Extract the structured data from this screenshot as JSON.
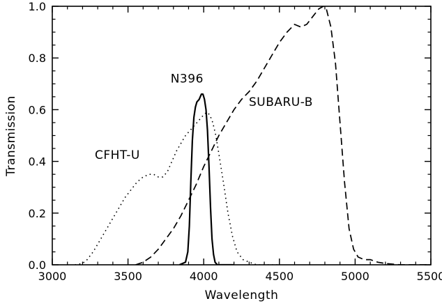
{
  "colors": {
    "stroke": "#000000",
    "background": "#ffffff"
  },
  "chart_data": {
    "type": "line",
    "title": "",
    "xlabel": "Wavelength",
    "ylabel": "Transmission",
    "xlim": [
      3000,
      5500
    ],
    "ylim": [
      0.0,
      1.0
    ],
    "x_ticks": [
      3000,
      3500,
      4000,
      4500,
      5000,
      5500
    ],
    "x_tick_labels": [
      "3000",
      "3500",
      "4000",
      "4500",
      "5000",
      "5500"
    ],
    "x_minor_step": 100,
    "y_ticks": [
      0.0,
      0.2,
      0.4,
      0.6,
      0.8,
      1.0
    ],
    "y_tick_labels": [
      "0.0",
      "0.2",
      "0.4",
      "0.6",
      "0.8",
      "1.0"
    ],
    "y_minor_step": 0.05,
    "grid": false,
    "legend_position": "none",
    "annotations": [
      {
        "text": "CFHT-U",
        "x": 3430,
        "y": 0.41
      },
      {
        "text": "N396",
        "x": 3890,
        "y": 0.705
      },
      {
        "text": "SUBARU-B",
        "x": 4510,
        "y": 0.615
      }
    ],
    "series": [
      {
        "name": "CFHT-U",
        "style": "dotted",
        "line_width": 1.6,
        "points": [
          [
            3150,
            0.0
          ],
          [
            3200,
            0.005
          ],
          [
            3230,
            0.02
          ],
          [
            3270,
            0.05
          ],
          [
            3300,
            0.08
          ],
          [
            3330,
            0.11
          ],
          [
            3360,
            0.14
          ],
          [
            3400,
            0.18
          ],
          [
            3440,
            0.22
          ],
          [
            3480,
            0.26
          ],
          [
            3520,
            0.29
          ],
          [
            3560,
            0.32
          ],
          [
            3600,
            0.34
          ],
          [
            3640,
            0.35
          ],
          [
            3670,
            0.35
          ],
          [
            3700,
            0.34
          ],
          [
            3730,
            0.34
          ],
          [
            3760,
            0.36
          ],
          [
            3790,
            0.4
          ],
          [
            3820,
            0.44
          ],
          [
            3850,
            0.47
          ],
          [
            3880,
            0.5
          ],
          [
            3910,
            0.52
          ],
          [
            3940,
            0.54
          ],
          [
            3970,
            0.56
          ],
          [
            4000,
            0.58
          ],
          [
            4020,
            0.59
          ],
          [
            4040,
            0.58
          ],
          [
            4060,
            0.55
          ],
          [
            4080,
            0.5
          ],
          [
            4100,
            0.43
          ],
          [
            4130,
            0.32
          ],
          [
            4160,
            0.2
          ],
          [
            4190,
            0.11
          ],
          [
            4220,
            0.05
          ],
          [
            4260,
            0.02
          ],
          [
            4300,
            0.01
          ],
          [
            4350,
            0.0
          ],
          [
            4500,
            0.0
          ]
        ]
      },
      {
        "name": "N396",
        "style": "solid",
        "line_width": 2.2,
        "points": [
          [
            3840,
            0.0
          ],
          [
            3880,
            0.01
          ],
          [
            3895,
            0.05
          ],
          [
            3905,
            0.15
          ],
          [
            3915,
            0.32
          ],
          [
            3925,
            0.48
          ],
          [
            3935,
            0.57
          ],
          [
            3945,
            0.61
          ],
          [
            3955,
            0.63
          ],
          [
            3970,
            0.64
          ],
          [
            3985,
            0.66
          ],
          [
            3995,
            0.66
          ],
          [
            4005,
            0.64
          ],
          [
            4015,
            0.6
          ],
          [
            4025,
            0.52
          ],
          [
            4035,
            0.38
          ],
          [
            4045,
            0.22
          ],
          [
            4055,
            0.1
          ],
          [
            4065,
            0.04
          ],
          [
            4075,
            0.01
          ],
          [
            4090,
            0.0
          ],
          [
            4200,
            0.0
          ]
        ]
      },
      {
        "name": "SUBARU-B",
        "style": "dashed",
        "line_width": 1.7,
        "points": [
          [
            3550,
            0.0
          ],
          [
            3600,
            0.01
          ],
          [
            3650,
            0.03
          ],
          [
            3700,
            0.06
          ],
          [
            3750,
            0.1
          ],
          [
            3800,
            0.14
          ],
          [
            3850,
            0.19
          ],
          [
            3900,
            0.25
          ],
          [
            3950,
            0.31
          ],
          [
            4000,
            0.38
          ],
          [
            4050,
            0.44
          ],
          [
            4100,
            0.5
          ],
          [
            4150,
            0.55
          ],
          [
            4200,
            0.6
          ],
          [
            4250,
            0.64
          ],
          [
            4300,
            0.67
          ],
          [
            4350,
            0.71
          ],
          [
            4400,
            0.76
          ],
          [
            4450,
            0.81
          ],
          [
            4500,
            0.86
          ],
          [
            4550,
            0.9
          ],
          [
            4600,
            0.93
          ],
          [
            4640,
            0.92
          ],
          [
            4680,
            0.93
          ],
          [
            4720,
            0.96
          ],
          [
            4760,
            0.99
          ],
          [
            4790,
            1.0
          ],
          [
            4810,
            0.99
          ],
          [
            4840,
            0.92
          ],
          [
            4870,
            0.78
          ],
          [
            4900,
            0.55
          ],
          [
            4930,
            0.32
          ],
          [
            4960,
            0.14
          ],
          [
            4990,
            0.06
          ],
          [
            5020,
            0.03
          ],
          [
            5060,
            0.02
          ],
          [
            5100,
            0.02
          ],
          [
            5150,
            0.01
          ],
          [
            5200,
            0.005
          ],
          [
            5300,
            0.0
          ],
          [
            5490,
            0.0
          ]
        ]
      }
    ]
  }
}
